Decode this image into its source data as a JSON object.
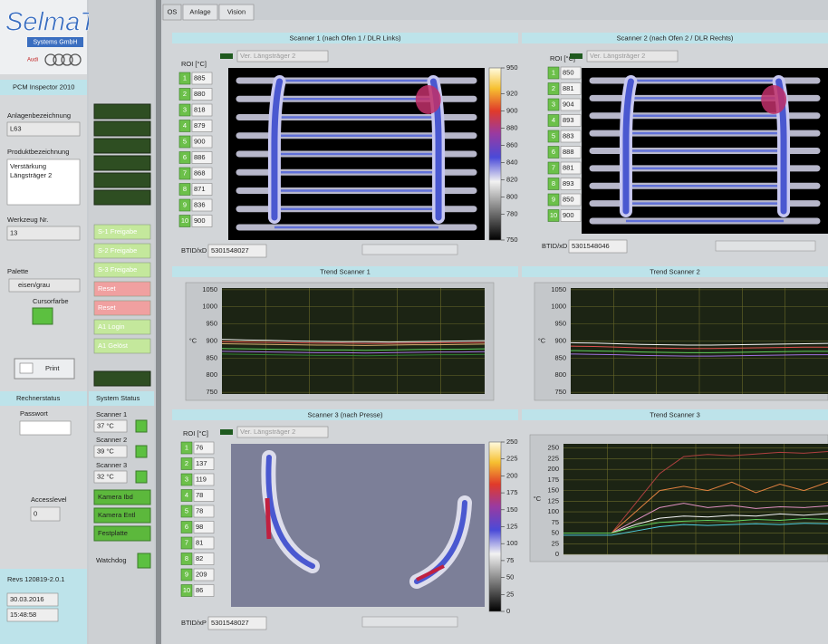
{
  "logo": {
    "name": "SelmaTec",
    "sub": "Systems GmbH",
    "brand": "Audi"
  },
  "sidebar": {
    "app": "PCM Inspector 2010",
    "plant_label": "Anlagenbezeichnung",
    "plant": "L63",
    "product_label": "Produktbezeichnung",
    "product": [
      "Verstärkung",
      "Längsträger 2"
    ],
    "tool_label": "Werkzeug Nr.",
    "tool": 13,
    "palette_label": "Palette",
    "palette": "eisen/grau",
    "cursor_label": "Cursorfarbe",
    "print": "Print",
    "host_status": "Rechnerstatus",
    "password_label": "Passwort",
    "access_label": "Accesslevel",
    "access": 0,
    "version": "Revs 120819-2.0.1",
    "date": "30.03.2016",
    "time": "15:48:58"
  },
  "controls": {
    "buttons": [
      {
        "label": "S-1 Freigabe",
        "color": "#c4e89c"
      },
      {
        "label": "S-2 Freigabe",
        "color": "#c4e89c"
      },
      {
        "label": "S-3 Freigabe",
        "color": "#c4e89c"
      },
      {
        "label": "Reset",
        "color": "#f0a0a0"
      },
      {
        "label": "Reset",
        "color": "#f0a0a0"
      },
      {
        "label": "A1 Login",
        "color": "#c4e89c"
      },
      {
        "label": "A1 Gelöst",
        "color": "#c4e89c"
      }
    ],
    "status_title": "System Status",
    "scanners": [
      {
        "label": "Scanner 1",
        "temp": "37 °C"
      },
      {
        "label": "Scanner 2",
        "temp": "39 °C"
      },
      {
        "label": "Scanner 3",
        "temp": "32 °C"
      }
    ],
    "devices": [
      "Kamera Ibd",
      "Kamera Entl",
      "Festplatte"
    ],
    "watchdog": "Watchdog"
  },
  "tabs": [
    "OS",
    "Anlage",
    "Vision"
  ],
  "scanners": [
    {
      "title": "Scanner 1 (nach Ofen 1 / DLR Links)",
      "roi_label": "ROI [°C]",
      "product": "Ver. Längsträger 2",
      "roi_ids": [
        1,
        2,
        3,
        4,
        5,
        6,
        7,
        8,
        9,
        10
      ],
      "roi": [
        885,
        880,
        818,
        879,
        900,
        886,
        868,
        871,
        836,
        900
      ],
      "id_label": "BTID/xD",
      "id": "5301548027",
      "clim": [
        750,
        950
      ],
      "cticks": [
        950,
        920,
        900,
        880,
        860,
        840,
        820,
        800,
        780,
        750
      ]
    },
    {
      "title": "Scanner 2 (nach Ofen 2 / DLR Rechts)",
      "roi_label": "ROI [°C]",
      "product": "Ver. Längsträger 2",
      "roi_ids": [
        1,
        2,
        3,
        4,
        5,
        6,
        7,
        8,
        9,
        10
      ],
      "roi": [
        850,
        881,
        904,
        893,
        883,
        888,
        881,
        893,
        850,
        900
      ],
      "id_label": "BTID/xD",
      "id": "5301548046"
    },
    {
      "title": "Scanner 3 (nach Presse)",
      "roi_label": "ROI [°C]",
      "product": "Ver. Längsträger 2",
      "roi_ids": [
        1,
        2,
        3,
        4,
        5,
        6,
        7,
        8,
        9,
        10
      ],
      "roi": [
        76,
        137,
        119,
        78,
        78,
        98,
        81,
        82,
        209,
        86
      ],
      "id_label": "BTID/xP",
      "id": "5301548027",
      "clim": [
        0,
        250
      ],
      "cticks": [
        250,
        225,
        200,
        175,
        150,
        125,
        100,
        75,
        50,
        25,
        0
      ]
    }
  ],
  "trends": [
    {
      "title": "Trend Scanner 1",
      "ylabel": "°C",
      "ylim": [
        745,
        1055
      ],
      "yticks": [
        1050,
        1000,
        950,
        900,
        850,
        800,
        750
      ],
      "series": [
        {
          "color": "#f4f4f4",
          "values": [
            905,
            903,
            902,
            900,
            899,
            898,
            898,
            897,
            898,
            899,
            900,
            901
          ]
        },
        {
          "color": "#e05050",
          "values": [
            898,
            897,
            896,
            895,
            894,
            894,
            893,
            893,
            894,
            895,
            895,
            896
          ]
        },
        {
          "color": "#d8b070",
          "values": [
            892,
            891,
            890,
            889,
            888,
            888,
            887,
            888,
            889,
            889,
            890,
            891
          ]
        },
        {
          "color": "#60d060",
          "values": [
            878,
            877,
            876,
            875,
            874,
            874,
            873,
            874,
            875,
            876,
            876,
            877
          ]
        },
        {
          "color": "#a070e0",
          "values": [
            870,
            869,
            868,
            867,
            866,
            866,
            865,
            866,
            867,
            868,
            868,
            869
          ]
        },
        {
          "color": "#308030",
          "values": [
            862,
            861,
            860,
            859,
            858,
            858,
            857,
            858,
            859,
            860,
            860,
            861
          ]
        }
      ]
    },
    {
      "title": "Trend Scanner 2",
      "ylabel": "°C",
      "ylim": [
        745,
        1055
      ],
      "yticks": [
        1050,
        1000,
        950,
        900,
        850,
        800,
        750
      ],
      "series": [
        {
          "color": "#f4f4f4",
          "values": [
            895,
            894,
            892,
            890,
            889,
            888,
            888,
            889,
            890,
            891,
            892,
            893
          ]
        },
        {
          "color": "#e05050",
          "values": [
            885,
            884,
            882,
            880,
            879,
            878,
            878,
            879,
            880,
            881,
            882,
            882
          ]
        },
        {
          "color": "#60d060",
          "values": [
            872,
            871,
            870,
            868,
            867,
            866,
            866,
            867,
            868,
            869,
            870,
            870
          ]
        },
        {
          "color": "#a070e0",
          "values": [
            862,
            861,
            860,
            858,
            857,
            856,
            856,
            857,
            858,
            859,
            860,
            860
          ]
        }
      ]
    },
    {
      "title": "Trend Scanner 3",
      "ylabel": "°C",
      "ylim": [
        0,
        260
      ],
      "yticks": [
        250,
        225,
        200,
        175,
        150,
        125,
        100,
        75,
        50,
        25,
        0
      ],
      "series": [
        {
          "color": "#b04040",
          "values": [
            50,
            50,
            50,
            120,
            190,
            230,
            235,
            232,
            236,
            240,
            238,
            242
          ]
        },
        {
          "color": "#e08040",
          "values": [
            50,
            50,
            50,
            100,
            150,
            160,
            150,
            170,
            145,
            165,
            150,
            170
          ]
        },
        {
          "color": "#e090c0",
          "values": [
            50,
            50,
            50,
            80,
            110,
            120,
            110,
            115,
            108,
            112,
            110,
            114
          ]
        },
        {
          "color": "#f4f4f4",
          "values": [
            50,
            50,
            50,
            70,
            85,
            90,
            88,
            92,
            90,
            95,
            92,
            96
          ]
        },
        {
          "color": "#60d060",
          "values": [
            50,
            50,
            50,
            65,
            75,
            78,
            80,
            78,
            82,
            80,
            84,
            82
          ]
        },
        {
          "color": "#50d0e0",
          "values": [
            45,
            45,
            45,
            55,
            65,
            70,
            68,
            70,
            72,
            70,
            73,
            72
          ]
        }
      ]
    }
  ]
}
